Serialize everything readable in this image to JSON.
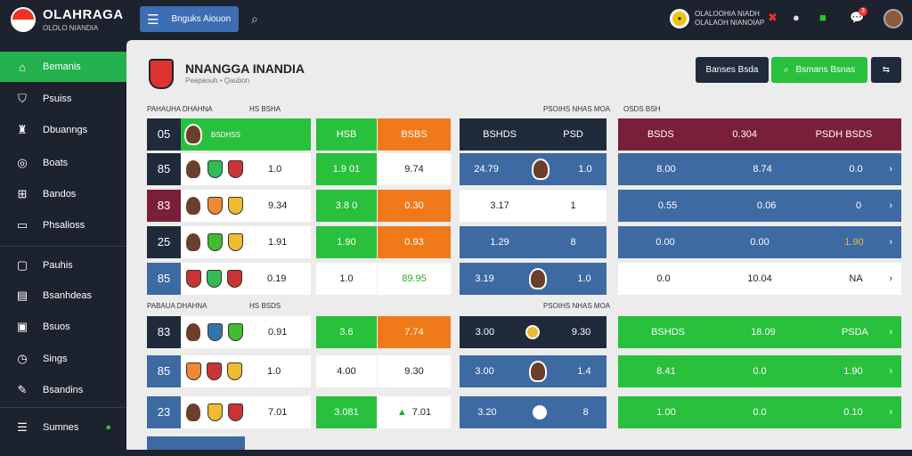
{
  "app": {
    "title": "OLAHRAGA",
    "subtitle": "OLOLO NIANDIA"
  },
  "topbar": {
    "menu_label": "Bnguks Aiouon",
    "user_line1": "OLALOOHIA NIADH",
    "user_line2": "OLALAOH NIANOIAP",
    "notif_count": "3"
  },
  "sidebar": {
    "items": [
      {
        "label": "Bemanis",
        "icon": "home-icon",
        "active": true
      },
      {
        "label": "Psuiss",
        "icon": "shield-icon"
      },
      {
        "label": "Dbuanngs",
        "icon": "trophy-icon"
      },
      {
        "label": "Boats",
        "icon": "globe-icon"
      },
      {
        "label": "Bandos",
        "icon": "grid-icon"
      },
      {
        "label": "Phsalioss",
        "icon": "monitor-icon"
      },
      {
        "label": "Pauhis",
        "icon": "cart-icon"
      },
      {
        "label": "Bsanhdeas",
        "icon": "bag-icon"
      },
      {
        "label": "Bsuos",
        "icon": "list-icon"
      },
      {
        "label": "Sings",
        "icon": "clock-icon"
      },
      {
        "label": "Bsandins",
        "icon": "wrench-icon"
      },
      {
        "label": "Sumnes",
        "icon": "user-icon"
      }
    ]
  },
  "header": {
    "title": "NNANGGA INANDIA",
    "subtitle": "Peapaouh • Qaubon",
    "btn_dark": "Banses Bsda",
    "btn_green": "Bsmans Bsnas"
  },
  "section1": {
    "label_a": "PAHAUHA DHAHNA",
    "label_b": "HS BSHA",
    "label_c": "PSOIHS NHAS MOA",
    "label_d": "BSOSH",
    "label_e": "OSDS BSH"
  },
  "section2": {
    "label_a": "PABAUA DHAHNA",
    "label_b": "HS BSDS",
    "label_c": "PSOIHS NHAS MOA"
  },
  "left_table": [
    {
      "num": "05",
      "score": "BSDHSS",
      "c1": "HSB",
      "c2": "BSBS"
    },
    {
      "num": "85",
      "score": "1.0",
      "c1": "1.9 01",
      "c2": "9.74"
    },
    {
      "num": "83",
      "score": "9.34",
      "c1": "3.8 0",
      "c2": "0.30"
    },
    {
      "num": "25",
      "score": "1.91",
      "c1": "1.90",
      "c2": "0.93"
    },
    {
      "num": "85",
      "score": "0.19",
      "c1": "1.0",
      "c2": "89.95"
    },
    {
      "num": "83",
      "score": "0.91",
      "c1": "3.6",
      "c2": "7.74"
    },
    {
      "num": "85",
      "score": "1.0",
      "c1": "4.00",
      "c2": "9.30"
    },
    {
      "num": "23",
      "score": "7.01",
      "c1": "3.081",
      "c2": "7.01"
    }
  ],
  "mid_table": [
    {
      "a": "BSHDS",
      "b": "PSD"
    },
    {
      "a": "24.79",
      "b": "1.0"
    },
    {
      "a": "3.17",
      "b": "1"
    },
    {
      "a": "1.29",
      "b": "8"
    },
    {
      "a": "3.19",
      "b": "1.0"
    },
    {
      "a": "3.00",
      "b": "9.30"
    },
    {
      "a": "3.00",
      "b": "1.4"
    },
    {
      "a": "3.20",
      "b": "8"
    }
  ],
  "right_table": [
    {
      "a": "BSDS",
      "b": "0.304",
      "c": "PSDH BSDS"
    },
    {
      "a": "8.00",
      "b": "8.74",
      "c": "0.0"
    },
    {
      "a": "0.55",
      "b": "0.06",
      "c": "0"
    },
    {
      "a": "0.00",
      "b": "0.00",
      "c": "1.90"
    },
    {
      "a": "0.0",
      "b": "10.04",
      "c": "NA"
    },
    {
      "a": "BSHDS",
      "b": "18.09",
      "c": "PSDA"
    },
    {
      "a": "8.41",
      "b": "0.0",
      "c": "1.90"
    },
    {
      "a": "1.00",
      "b": "0.0",
      "c": "0.10"
    }
  ]
}
